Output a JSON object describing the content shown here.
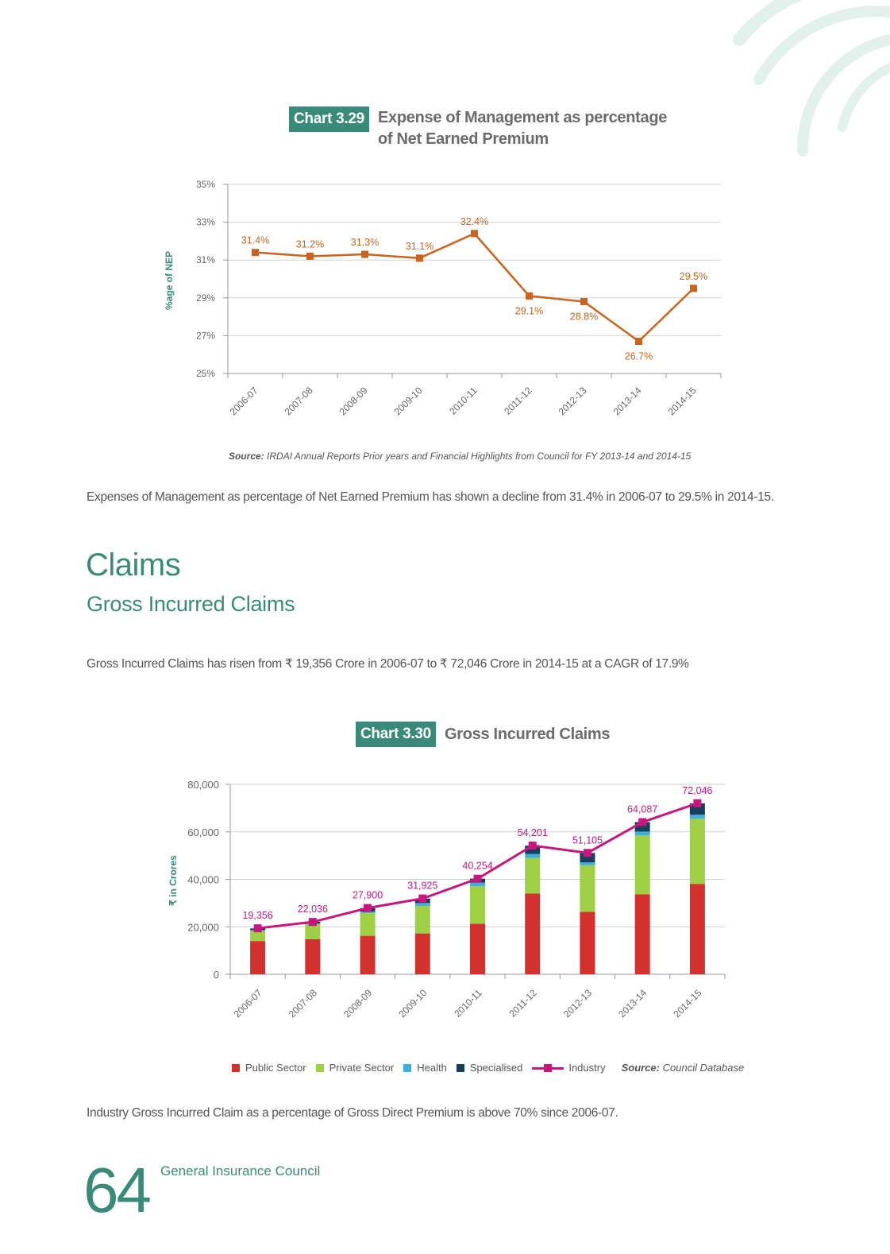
{
  "page": {
    "page_number": "64",
    "footer_title": "General Insurance Council"
  },
  "chart1": {
    "tag": "Chart 3.29",
    "title_line1": "Expense of Management as percentage",
    "title_line2": "of Net Earned Premium",
    "source_label": "Source:",
    "source_text": "IRDAI Annual Reports Prior years and Financial Highlights from Council for FY 2013-14 and 2014-15"
  },
  "paragraph1": "Expenses of Management as percentage of Net Earned Premium has shown a decline from 31.4% in 2006-07 to 29.5% in 2014-15.",
  "section": {
    "heading": "Claims",
    "subheading": "Gross Incurred Claims",
    "paragraph": "Gross Incurred Claims has risen from ₹ 19,356 Crore in 2006-07 to ₹ 72,046 Crore in 2014-15 at a CAGR of 17.9%"
  },
  "chart2": {
    "tag": "Chart 3.30",
    "title": "Gross Incurred Claims",
    "source_label": "Source:",
    "source_text": "Council Database"
  },
  "paragraph2": "Industry Gross Incurred Claim as a percentage of Gross Direct Premium is above 70% since 2006-07.",
  "colors": {
    "accent": "#3a8a79",
    "line1": "#c9631d",
    "public": "#d2312e",
    "private": "#9ecf45",
    "health": "#3fb0dc",
    "specialised": "#173f5c",
    "industry": "#c8167f"
  },
  "chart_data": [
    {
      "type": "line",
      "title": "Expense of Management as percentage of Net Earned Premium",
      "ylabel": "%age of NEP",
      "xlabel": "",
      "categories": [
        "2006-07",
        "2007-08",
        "2008-09",
        "2009-10",
        "2010-11",
        "2011-12",
        "2012-13",
        "2013-14",
        "2014-15"
      ],
      "values": [
        31.4,
        31.2,
        31.3,
        31.1,
        32.4,
        29.1,
        28.8,
        26.7,
        29.5
      ],
      "data_labels": [
        "31.4%",
        "31.2%",
        "31.3%",
        "31.1%",
        "32.4%",
        "29.1%",
        "28.8%",
        "26.7%",
        "29.5%"
      ],
      "ylim": [
        25,
        35
      ],
      "yticks": [
        "25%",
        "27%",
        "29%",
        "31%",
        "33%",
        "35%"
      ],
      "grid": true
    },
    {
      "type": "bar",
      "stacked": true,
      "title": "Gross Incurred Claims",
      "ylabel": "₹ in Crores",
      "xlabel": "",
      "categories": [
        "2006-07",
        "2007-08",
        "2008-09",
        "2009-10",
        "2010-11",
        "2011-12",
        "2012-13",
        "2013-14",
        "2014-15"
      ],
      "ylim": [
        0,
        80000
      ],
      "yticks": [
        "0",
        "20,000",
        "40,000",
        "60,000",
        "80,000"
      ],
      "grid": true,
      "legend_position": "bottom",
      "series": [
        {
          "name": "Public Sector",
          "kind": "bar",
          "values": [
            14000,
            14800,
            16200,
            17200,
            21300,
            34000,
            26300,
            33700,
            38000
          ]
        },
        {
          "name": "Private Sector",
          "kind": "bar",
          "values": [
            4300,
            6300,
            9600,
            11600,
            15800,
            15000,
            19600,
            24800,
            27500
          ]
        },
        {
          "name": "Health",
          "kind": "bar",
          "values": [
            300,
            300,
            600,
            1200,
            1500,
            1700,
            1200,
            1600,
            1700
          ]
        },
        {
          "name": "Specialised",
          "kind": "bar",
          "values": [
            700,
            700,
            1500,
            1900,
            1700,
            3500,
            4000,
            4000,
            4800
          ]
        },
        {
          "name": "Industry",
          "kind": "line",
          "values": [
            19356,
            22036,
            27900,
            31925,
            40254,
            54201,
            51105,
            64087,
            72046
          ],
          "data_labels": [
            "19,356",
            "22,036",
            "27,900",
            "31,925",
            "40,254",
            "54,201",
            "51,105",
            "64,087",
            "72,046"
          ]
        }
      ]
    }
  ]
}
